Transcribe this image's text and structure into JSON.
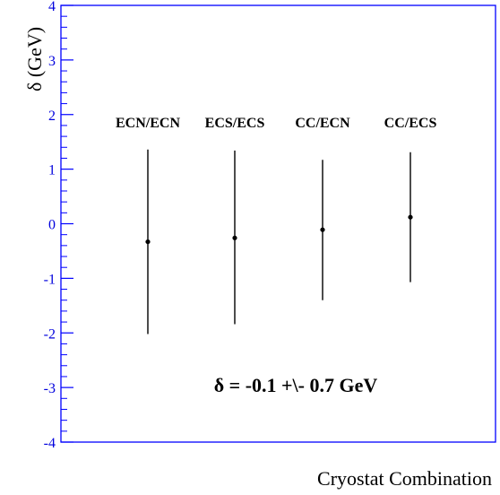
{
  "chart_data": {
    "type": "scatter",
    "title": "",
    "xlabel": "Cryostat Combination",
    "ylabel": "δ (GeV)",
    "ylim": [
      -4,
      4
    ],
    "yticks": [
      "-4",
      "-3",
      "-2",
      "-1",
      "0",
      "1",
      "2",
      "3",
      "4"
    ],
    "grid": false,
    "categories": [
      "ECN/ECN",
      "ECS/ECS",
      "CC/ECN",
      "CC/ECS"
    ],
    "series": [
      {
        "values": [
          -0.33,
          -0.26,
          -0.11,
          0.12
        ],
        "err_low": [
          -2.02,
          -1.84,
          -1.4,
          -1.07
        ],
        "err_high": [
          1.36,
          1.34,
          1.17,
          1.31
        ]
      }
    ],
    "annotation": "δ = -0.1 +\\- 0.7 GeV",
    "colors": {
      "axis": "#0000ff",
      "tick_label": "#0000dd",
      "marker": "#000000"
    }
  }
}
